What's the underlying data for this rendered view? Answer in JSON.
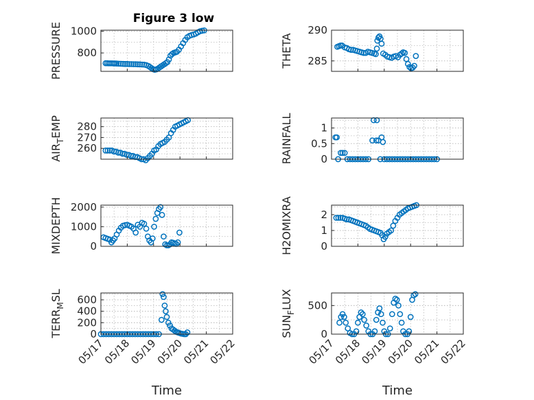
{
  "figure": {
    "title": "Figure 3 low"
  },
  "chart_data": [
    {
      "type": "scatter",
      "ylabel": "PRESSURE",
      "yticks": [
        800,
        1000
      ],
      "ylim": [
        630,
        1010
      ],
      "xlim": [
        0,
        5
      ],
      "xticks": [
        "05/17",
        "05/18",
        "05/19",
        "05/20",
        "05/21",
        "05/22"
      ],
      "xlabel": "",
      "grid": true,
      "y": [
        705,
        705,
        704,
        704,
        704,
        703,
        703,
        702,
        701,
        700,
        699,
        698,
        698,
        697,
        697,
        696,
        696,
        695,
        694,
        693,
        692,
        688,
        680,
        670,
        660,
        650,
        645,
        648,
        655,
        665,
        675,
        685,
        695,
        705,
        715,
        740,
        775,
        790,
        800,
        805,
        810,
        830,
        860,
        890,
        920,
        945,
        958,
        965,
        970,
        978,
        990,
        1000,
        1005,
        1008
      ],
      "x": [
        0.18,
        0.24,
        0.3,
        0.36,
        0.42,
        0.48,
        0.54,
        0.6,
        0.68,
        0.76,
        0.84,
        0.92,
        1.0,
        1.08,
        1.16,
        1.24,
        1.32,
        1.4,
        1.48,
        1.56,
        1.64,
        1.72,
        1.8,
        1.86,
        1.92,
        1.98,
        2.04,
        2.1,
        2.16,
        2.22,
        2.28,
        2.34,
        2.4,
        2.46,
        2.52,
        2.58,
        2.64,
        2.7,
        2.76,
        2.82,
        2.88,
        2.96,
        3.04,
        3.12,
        3.2,
        3.28,
        3.36,
        3.44,
        3.52,
        3.6,
        3.68,
        3.76,
        3.84,
        3.92
      ]
    },
    {
      "type": "scatter",
      "ylabel": "THETA",
      "yticks": [
        285,
        290
      ],
      "ylim": [
        283.3,
        290
      ],
      "xlim": [
        0,
        5
      ],
      "xticks": [
        "05/17",
        "05/18",
        "05/19",
        "05/20",
        "05/21",
        "05/22"
      ],
      "xlabel": "",
      "grid": true,
      "y": [
        287.3,
        287.4,
        287.5,
        287.5,
        287.2,
        287.1,
        286.9,
        286.8,
        286.8,
        286.7,
        286.6,
        286.5,
        286.4,
        286.3,
        286.3,
        286.5,
        286.4,
        286.3,
        286.2,
        286.1,
        287.0,
        288.3,
        288.8,
        289.0,
        288.6,
        287.8,
        286.2,
        286.0,
        285.7,
        285.6,
        285.5,
        285.7,
        285.8,
        285.6,
        286.0,
        286.2,
        286.4,
        286.3,
        285.3,
        284.5,
        284.0,
        283.8,
        283.9,
        284.2,
        285.8
      ],
      "x": [
        0.22,
        0.28,
        0.34,
        0.4,
        0.5,
        0.58,
        0.66,
        0.74,
        0.82,
        0.9,
        0.98,
        1.06,
        1.14,
        1.22,
        1.3,
        1.38,
        1.46,
        1.54,
        1.62,
        1.68,
        1.72,
        1.74,
        1.78,
        1.82,
        1.86,
        1.9,
        1.96,
        2.04,
        2.12,
        2.2,
        2.28,
        2.36,
        2.44,
        2.52,
        2.6,
        2.66,
        2.72,
        2.78,
        2.84,
        2.9,
        2.96,
        3.02,
        3.08,
        3.14,
        3.2
      ]
    },
    {
      "type": "scatter",
      "ylabel": "AIR",
      "ylabel_sub": "T",
      "ylabel_rest": "EMP",
      "yticks": [
        260,
        270,
        280
      ],
      "ylim": [
        250,
        288
      ],
      "xlim": [
        0,
        5
      ],
      "xticks": [
        "05/17",
        "05/18",
        "05/19",
        "05/20",
        "05/21",
        "05/22"
      ],
      "xlabel": "",
      "grid": true,
      "y": [
        258,
        258,
        258,
        258,
        257,
        257,
        256,
        256,
        255,
        255,
        254,
        254,
        253,
        253,
        252,
        252,
        251,
        250,
        250,
        249,
        251,
        253,
        255,
        258,
        259,
        262,
        264,
        265,
        266,
        268,
        270,
        274,
        277,
        280,
        281,
        282,
        283,
        284,
        285,
        286
      ],
      "x": [
        0.18,
        0.26,
        0.34,
        0.42,
        0.5,
        0.58,
        0.66,
        0.74,
        0.82,
        0.9,
        0.98,
        1.06,
        1.14,
        1.22,
        1.3,
        1.38,
        1.46,
        1.54,
        1.62,
        1.7,
        1.78,
        1.86,
        1.94,
        2.02,
        2.1,
        2.18,
        2.26,
        2.34,
        2.42,
        2.5,
        2.58,
        2.66,
        2.74,
        2.82,
        2.9,
        2.98,
        3.06,
        3.14,
        3.22,
        3.3
      ]
    },
    {
      "type": "scatter",
      "ylabel": "RAINFALL",
      "yticks": [
        0,
        0.5,
        1
      ],
      "ylim": [
        0,
        1.32
      ],
      "xlim": [
        0,
        5
      ],
      "xticks": [
        "05/17",
        "05/18",
        "05/19",
        "05/20",
        "05/21",
        "05/22"
      ],
      "xlabel": "",
      "grid": true,
      "y": [
        0.7,
        0.7,
        0,
        0.2,
        0.2,
        0.2,
        0,
        0,
        0,
        0,
        0,
        0,
        0,
        0,
        0,
        0.6,
        1.25,
        1.25,
        0.6,
        0.6,
        0,
        0.7,
        0.55,
        0,
        0,
        0,
        0,
        0,
        0,
        0,
        0,
        0,
        0,
        0,
        0,
        0,
        0,
        0,
        0,
        0,
        0,
        0,
        0,
        0
      ],
      "x": [
        0.15,
        0.2,
        0.25,
        0.35,
        0.42,
        0.5,
        0.6,
        0.7,
        0.8,
        0.9,
        1.0,
        1.1,
        1.2,
        1.3,
        1.4,
        1.55,
        1.6,
        1.72,
        1.7,
        1.78,
        1.85,
        1.9,
        1.95,
        2.0,
        2.1,
        2.2,
        2.3,
        2.4,
        2.5,
        2.6,
        2.7,
        2.8,
        2.9,
        3.0,
        3.1,
        3.2,
        3.3,
        3.4,
        3.5,
        3.6,
        3.7,
        3.8,
        3.9,
        4.0
      ]
    },
    {
      "type": "scatter",
      "ylabel": "MIXDEPTH",
      "yticks": [
        0,
        1000,
        2000
      ],
      "ylim": [
        0,
        2100
      ],
      "xlim": [
        0,
        5
      ],
      "xticks": [
        "05/17",
        "05/18",
        "05/19",
        "05/20",
        "05/21",
        "05/22"
      ],
      "xlabel": "",
      "grid": true,
      "y": [
        460,
        420,
        380,
        340,
        200,
        300,
        400,
        600,
        800,
        950,
        1050,
        1080,
        1100,
        1050,
        1000,
        900,
        700,
        1100,
        1000,
        1200,
        1150,
        900,
        500,
        300,
        200,
        400,
        1000,
        1400,
        1700,
        1900,
        2000,
        1600,
        500,
        100,
        50,
        50,
        100,
        200,
        180,
        150,
        120,
        200,
        700
      ],
      "x": [
        0.1,
        0.18,
        0.26,
        0.34,
        0.4,
        0.46,
        0.52,
        0.6,
        0.68,
        0.76,
        0.84,
        0.92,
        1.0,
        1.08,
        1.16,
        1.24,
        1.32,
        1.4,
        1.48,
        1.56,
        1.64,
        1.72,
        1.78,
        1.84,
        1.9,
        1.96,
        2.02,
        2.08,
        2.14,
        2.2,
        2.26,
        2.32,
        2.38,
        2.44,
        2.5,
        2.56,
        2.62,
        2.68,
        2.74,
        2.8,
        2.86,
        2.92,
        2.98
      ]
    },
    {
      "type": "scatter",
      "ylabel": "H2OMIXRA",
      "yticks": [
        0,
        1,
        2
      ],
      "ylim": [
        0,
        2.6
      ],
      "xlim": [
        0,
        5
      ],
      "xticks": [
        "05/17",
        "05/18",
        "05/19",
        "05/20",
        "05/21",
        "05/22"
      ],
      "xlabel": "",
      "grid": true,
      "y": [
        1.8,
        1.8,
        1.8,
        1.8,
        1.75,
        1.7,
        1.7,
        1.65,
        1.6,
        1.55,
        1.5,
        1.45,
        1.4,
        1.35,
        1.3,
        1.2,
        1.1,
        1.05,
        1.0,
        0.95,
        0.9,
        0.85,
        0.7,
        0.45,
        0.6,
        0.8,
        0.9,
        1.0,
        1.3,
        1.6,
        1.8,
        2.0,
        2.1,
        2.2,
        2.3,
        2.4,
        2.45,
        2.5,
        2.55,
        2.6
      ],
      "x": [
        0.18,
        0.26,
        0.34,
        0.42,
        0.5,
        0.58,
        0.66,
        0.74,
        0.82,
        0.9,
        0.98,
        1.06,
        1.14,
        1.22,
        1.3,
        1.38,
        1.46,
        1.54,
        1.62,
        1.7,
        1.78,
        1.86,
        1.92,
        1.98,
        2.04,
        2.1,
        2.18,
        2.26,
        2.34,
        2.42,
        2.5,
        2.58,
        2.66,
        2.74,
        2.82,
        2.9,
        2.98,
        3.06,
        3.14,
        3.22
      ]
    },
    {
      "type": "scatter",
      "ylabel": "TERR",
      "ylabel_sub": "M",
      "ylabel_rest": "SL",
      "yticks": [
        0,
        200,
        400,
        600
      ],
      "ylim": [
        0,
        720
      ],
      "xlim": [
        0,
        5
      ],
      "xticks": [
        "05/17",
        "05/18",
        "05/19",
        "05/20",
        "05/21",
        "05/22"
      ],
      "xlabel": "Time",
      "grid": true,
      "y": [
        0,
        0,
        0,
        0,
        0,
        0,
        0,
        0,
        0,
        0,
        0,
        0,
        0,
        0,
        0,
        0,
        0,
        0,
        0,
        0,
        0,
        0,
        0,
        250,
        700,
        650,
        500,
        400,
        300,
        200,
        150,
        100,
        80,
        60,
        40,
        30,
        20,
        10,
        5,
        0,
        0,
        30
      ],
      "x": [
        0.0,
        0.1,
        0.2,
        0.3,
        0.4,
        0.5,
        0.6,
        0.7,
        0.8,
        0.9,
        1.0,
        1.1,
        1.2,
        1.3,
        1.4,
        1.5,
        1.6,
        1.7,
        1.8,
        1.9,
        2.0,
        2.1,
        2.2,
        2.3,
        2.34,
        2.38,
        2.42,
        2.46,
        2.5,
        2.56,
        2.62,
        2.68,
        2.74,
        2.8,
        2.86,
        2.92,
        2.98,
        3.04,
        3.1,
        3.16,
        3.22,
        3.28
      ]
    },
    {
      "type": "scatter",
      "ylabel": "SUN",
      "ylabel_sub": "F",
      "ylabel_rest": "LUX",
      "yticks": [
        0,
        500
      ],
      "ylim": [
        0,
        720
      ],
      "xlim": [
        0,
        5
      ],
      "xticks": [
        "05/17",
        "05/18",
        "05/19",
        "05/20",
        "05/21",
        "05/22"
      ],
      "xlabel": "Time",
      "grid": true,
      "y": [
        200,
        300,
        350,
        300,
        200,
        100,
        20,
        0,
        0,
        50,
        200,
        300,
        380,
        350,
        250,
        150,
        50,
        0,
        0,
        50,
        250,
        380,
        450,
        350,
        200,
        50,
        0,
        0,
        100,
        350,
        550,
        620,
        600,
        500,
        350,
        200,
        50,
        0,
        0,
        50,
        300,
        600,
        680,
        700
      ],
      "x": [
        0.3,
        0.36,
        0.42,
        0.48,
        0.54,
        0.62,
        0.7,
        0.78,
        0.86,
        0.94,
        1.0,
        1.06,
        1.12,
        1.18,
        1.24,
        1.32,
        1.4,
        1.48,
        1.56,
        1.64,
        1.7,
        1.76,
        1.82,
        1.88,
        1.94,
        2.0,
        2.06,
        2.14,
        2.22,
        2.3,
        2.36,
        2.42,
        2.48,
        2.54,
        2.6,
        2.66,
        2.72,
        2.8,
        2.88,
        2.94,
        3.0,
        3.06,
        3.12,
        3.18
      ]
    }
  ]
}
